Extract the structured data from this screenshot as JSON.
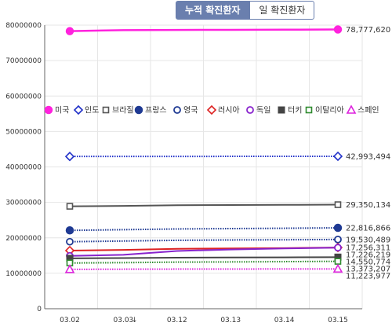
{
  "tabs": {
    "cumulative": "누적 확진환자",
    "daily": "일 확진환자"
  },
  "chart_data": {
    "type": "line",
    "categories": [
      "03.02",
      "03.03",
      "03.12",
      "03.13",
      "03.14",
      "03.15"
    ],
    "axis_break_label": "↓",
    "ylim": [
      0,
      80000000
    ],
    "yticks": [
      0,
      10000000,
      20000000,
      30000000,
      40000000,
      50000000,
      60000000,
      70000000,
      80000000
    ],
    "ytick_labels": [
      "0",
      "10000000",
      "20000000",
      "30000000",
      "40000000",
      "50000000",
      "60000000",
      "70000000",
      "80000000"
    ],
    "legend_position": "top-left",
    "series": [
      {
        "name": "미국",
        "color": "#ff22dd",
        "marker": "circle-filled",
        "dash": "solid",
        "width": 2.5,
        "values": [
          78300000,
          78600000,
          78650000,
          78680000,
          78720000,
          78777620
        ],
        "end_label": "78,777,620"
      },
      {
        "name": "인도",
        "color": "#2030c8",
        "marker": "diamond-open",
        "dash": "dotted",
        "width": 2,
        "values": [
          42950000,
          42960000,
          42970000,
          42980000,
          42985000,
          42993494
        ],
        "end_label": "42,993,494"
      },
      {
        "name": "브라질",
        "color": "#555555",
        "marker": "square-open",
        "dash": "solid",
        "width": 2,
        "values": [
          28900000,
          29000000,
          29200000,
          29250000,
          29300000,
          29350134
        ],
        "end_label": "29,350,134"
      },
      {
        "name": "프랑스",
        "color": "#1f3a93",
        "marker": "circle-filled",
        "dash": "dotted",
        "width": 2,
        "values": [
          22100000,
          22300000,
          22500000,
          22600000,
          22700000,
          22816866
        ],
        "end_label": "22,816,866"
      },
      {
        "name": "영국",
        "color": "#1f3a93",
        "marker": "circle-open",
        "dash": "dotted",
        "width": 2,
        "values": [
          18900000,
          19100000,
          19300000,
          19400000,
          19450000,
          19530489
        ],
        "end_label": "19,530,489"
      },
      {
        "name": "러시아",
        "color": "#dd2222",
        "marker": "diamond-open",
        "dash": "solid",
        "width": 2,
        "values": [
          16400000,
          16600000,
          16900000,
          17000000,
          17100000,
          17256311
        ],
        "end_label": "17,256,311"
      },
      {
        "name": "독일",
        "color": "#8822cc",
        "marker": "circle-open",
        "dash": "solid",
        "width": 2,
        "values": [
          14900000,
          15200000,
          16300000,
          16700000,
          17000000,
          17226219
        ],
        "end_label": "17,226,219"
      },
      {
        "name": "터키",
        "color": "#444444",
        "marker": "square-filled",
        "dash": "solid",
        "width": 2,
        "values": [
          14200000,
          14300000,
          14400000,
          14450000,
          14500000,
          14550774
        ],
        "end_label": "14,550,774"
      },
      {
        "name": "이탈리아",
        "color": "#2e8b2e",
        "marker": "square-open",
        "dash": "dotted",
        "width": 2,
        "values": [
          12900000,
          13000000,
          13150000,
          13200000,
          13280000,
          13373207
        ],
        "end_label": "13,373,207"
      },
      {
        "name": "스페인",
        "color": "#dd22dd",
        "marker": "triangle-open",
        "dash": "dotted",
        "width": 2,
        "values": [
          11100000,
          11150000,
          11180000,
          11200000,
          11210000,
          11223977
        ],
        "end_label": "11,223,977"
      }
    ]
  }
}
